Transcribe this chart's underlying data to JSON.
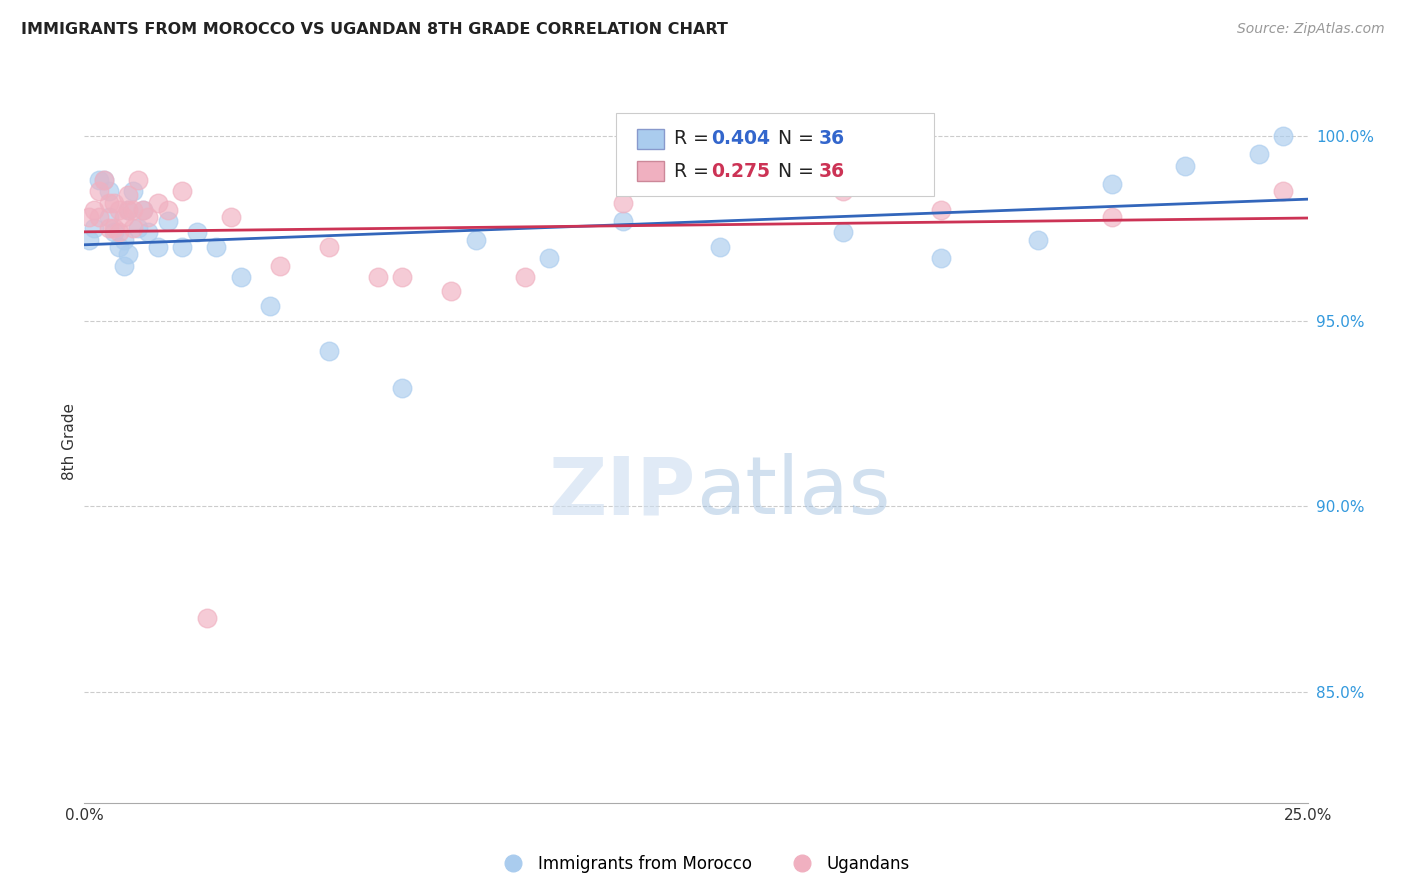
{
  "title": "IMMIGRANTS FROM MOROCCO VS UGANDAN 8TH GRADE CORRELATION CHART",
  "source": "Source: ZipAtlas.com",
  "ylabel": "8th Grade",
  "ylabel_right_ticks": [
    "100.0%",
    "95.0%",
    "90.0%",
    "85.0%"
  ],
  "ylabel_right_vals": [
    1.0,
    0.95,
    0.9,
    0.85
  ],
  "xmin": 0.0,
  "xmax": 0.25,
  "ymin": 0.82,
  "ymax": 1.015,
  "legend_blue_r": "0.404",
  "legend_blue_n": "36",
  "legend_pink_r": "0.275",
  "legend_pink_n": "36",
  "blue_color": "#aaccee",
  "pink_color": "#f0b0c0",
  "blue_line_color": "#3366bb",
  "pink_line_color": "#cc3355",
  "blue_x": [
    0.001,
    0.002,
    0.003,
    0.004,
    0.005,
    0.005,
    0.006,
    0.007,
    0.008,
    0.008,
    0.009,
    0.009,
    0.01,
    0.011,
    0.012,
    0.013,
    0.015,
    0.017,
    0.02,
    0.023,
    0.027,
    0.032,
    0.038,
    0.05,
    0.065,
    0.08,
    0.095,
    0.11,
    0.13,
    0.155,
    0.175,
    0.195,
    0.21,
    0.225,
    0.24,
    0.245
  ],
  "blue_y": [
    0.972,
    0.975,
    0.988,
    0.988,
    0.985,
    0.978,
    0.974,
    0.97,
    0.972,
    0.965,
    0.968,
    0.98,
    0.985,
    0.975,
    0.98,
    0.974,
    0.97,
    0.977,
    0.97,
    0.974,
    0.97,
    0.962,
    0.954,
    0.942,
    0.932,
    0.972,
    0.967,
    0.977,
    0.97,
    0.974,
    0.967,
    0.972,
    0.987,
    0.992,
    0.995,
    1.0
  ],
  "pink_x": [
    0.001,
    0.002,
    0.003,
    0.003,
    0.004,
    0.005,
    0.005,
    0.006,
    0.006,
    0.007,
    0.007,
    0.008,
    0.009,
    0.009,
    0.01,
    0.01,
    0.011,
    0.012,
    0.013,
    0.015,
    0.017,
    0.02,
    0.025,
    0.03,
    0.04,
    0.05,
    0.06,
    0.065,
    0.075,
    0.09,
    0.11,
    0.13,
    0.155,
    0.175,
    0.21,
    0.245
  ],
  "pink_y": [
    0.978,
    0.98,
    0.985,
    0.978,
    0.988,
    0.982,
    0.975,
    0.982,
    0.975,
    0.98,
    0.974,
    0.978,
    0.984,
    0.98,
    0.98,
    0.975,
    0.988,
    0.98,
    0.978,
    0.982,
    0.98,
    0.985,
    0.87,
    0.978,
    0.965,
    0.97,
    0.962,
    0.962,
    0.958,
    0.962,
    0.982,
    0.988,
    0.985,
    0.98,
    0.978,
    0.985
  ]
}
